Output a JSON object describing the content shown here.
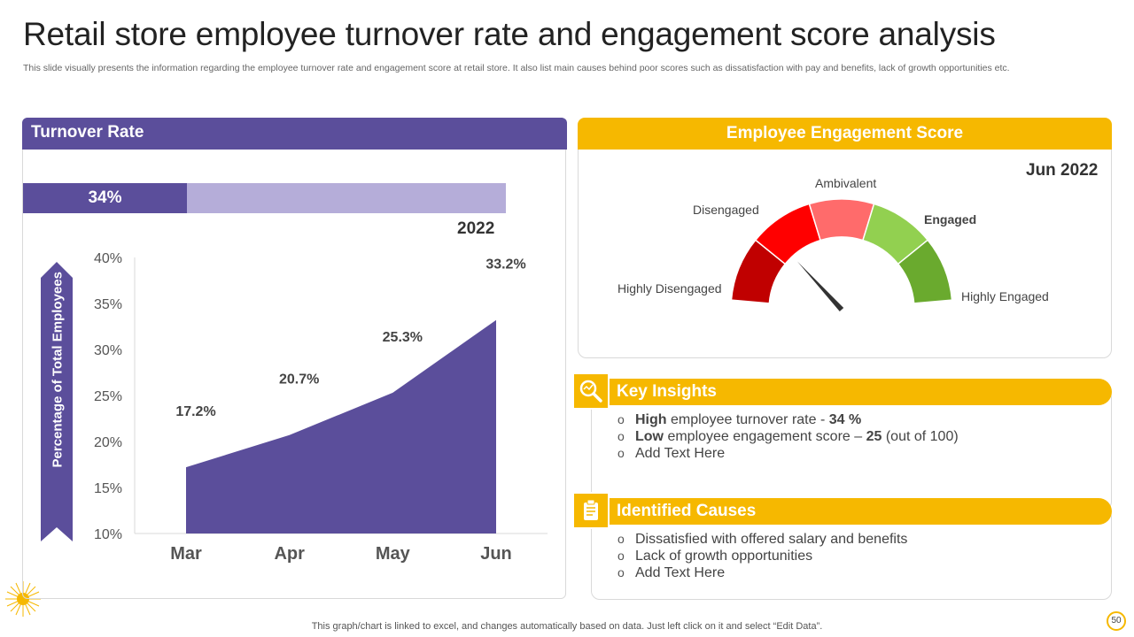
{
  "title": "Retail store employee turnover rate and engagement score analysis",
  "subtitle": "This slide visually presents the information regarding the employee turnover rate and engagement score at retail store. It also list main causes behind poor scores such as dissatisfaction with pay and benefits, lack of growth opportunities etc.",
  "turnover_panel": {
    "header": "Turnover Rate",
    "bar_value_label": "34%",
    "bar_fraction": 0.34,
    "year": "2022",
    "ylabel": "Percentage of Total Employees"
  },
  "chart_data": {
    "type": "area",
    "title": "Turnover Rate",
    "categories": [
      "Mar",
      "Apr",
      "May",
      "Jun"
    ],
    "values": [
      17.2,
      20.7,
      25.3,
      33.2
    ],
    "data_labels": [
      "17.2%",
      "20.7%",
      "25.3%",
      "33.2%"
    ],
    "ylabel": "Percentage of Total Employees",
    "xlabel": "",
    "ylim": [
      10,
      40
    ],
    "yticks": [
      "10%",
      "15%",
      "20%",
      "25%",
      "30%",
      "35%",
      "40%"
    ],
    "ytick_values": [
      10,
      15,
      20,
      25,
      30,
      35,
      40
    ],
    "color": "#5b4e9b"
  },
  "engagement": {
    "header": "Employee Engagement Score",
    "date": "Jun 2022",
    "score": 25,
    "score_max": 100,
    "segments": [
      {
        "label": "Highly Disengaged",
        "color": "#c00000"
      },
      {
        "label": "Disengaged",
        "color": "#ff0000"
      },
      {
        "label": "Ambivalent",
        "color": "#ff6b6b"
      },
      {
        "label": "Engaged",
        "color": "#92d050"
      },
      {
        "label": "Highly Engaged",
        "color": "#6aaa2e"
      }
    ]
  },
  "key_insights": {
    "header": "Key Insights",
    "items": [
      {
        "bold": "High",
        "text": " employee turnover  rate - ",
        "value": "34 %",
        "tail": ""
      },
      {
        "bold": "Low",
        "text": " employee engagement score – ",
        "value": "25",
        "tail": " (out of 100)"
      },
      {
        "bold": "",
        "text": "Add Text Here",
        "value": "",
        "tail": ""
      }
    ]
  },
  "causes": {
    "header": "Identified Causes",
    "items": [
      "Dissatisfied with offered salary and benefits",
      "Lack of growth opportunities",
      "Add Text Here"
    ]
  },
  "footer": "This graph/chart is linked to excel,  and changes automatically based on data. Just left click on it and select “Edit Data”.",
  "page_number": "50",
  "colors": {
    "purple": "#5b4e9b",
    "light_purple": "#b5add9",
    "yellow": "#f6b800"
  }
}
